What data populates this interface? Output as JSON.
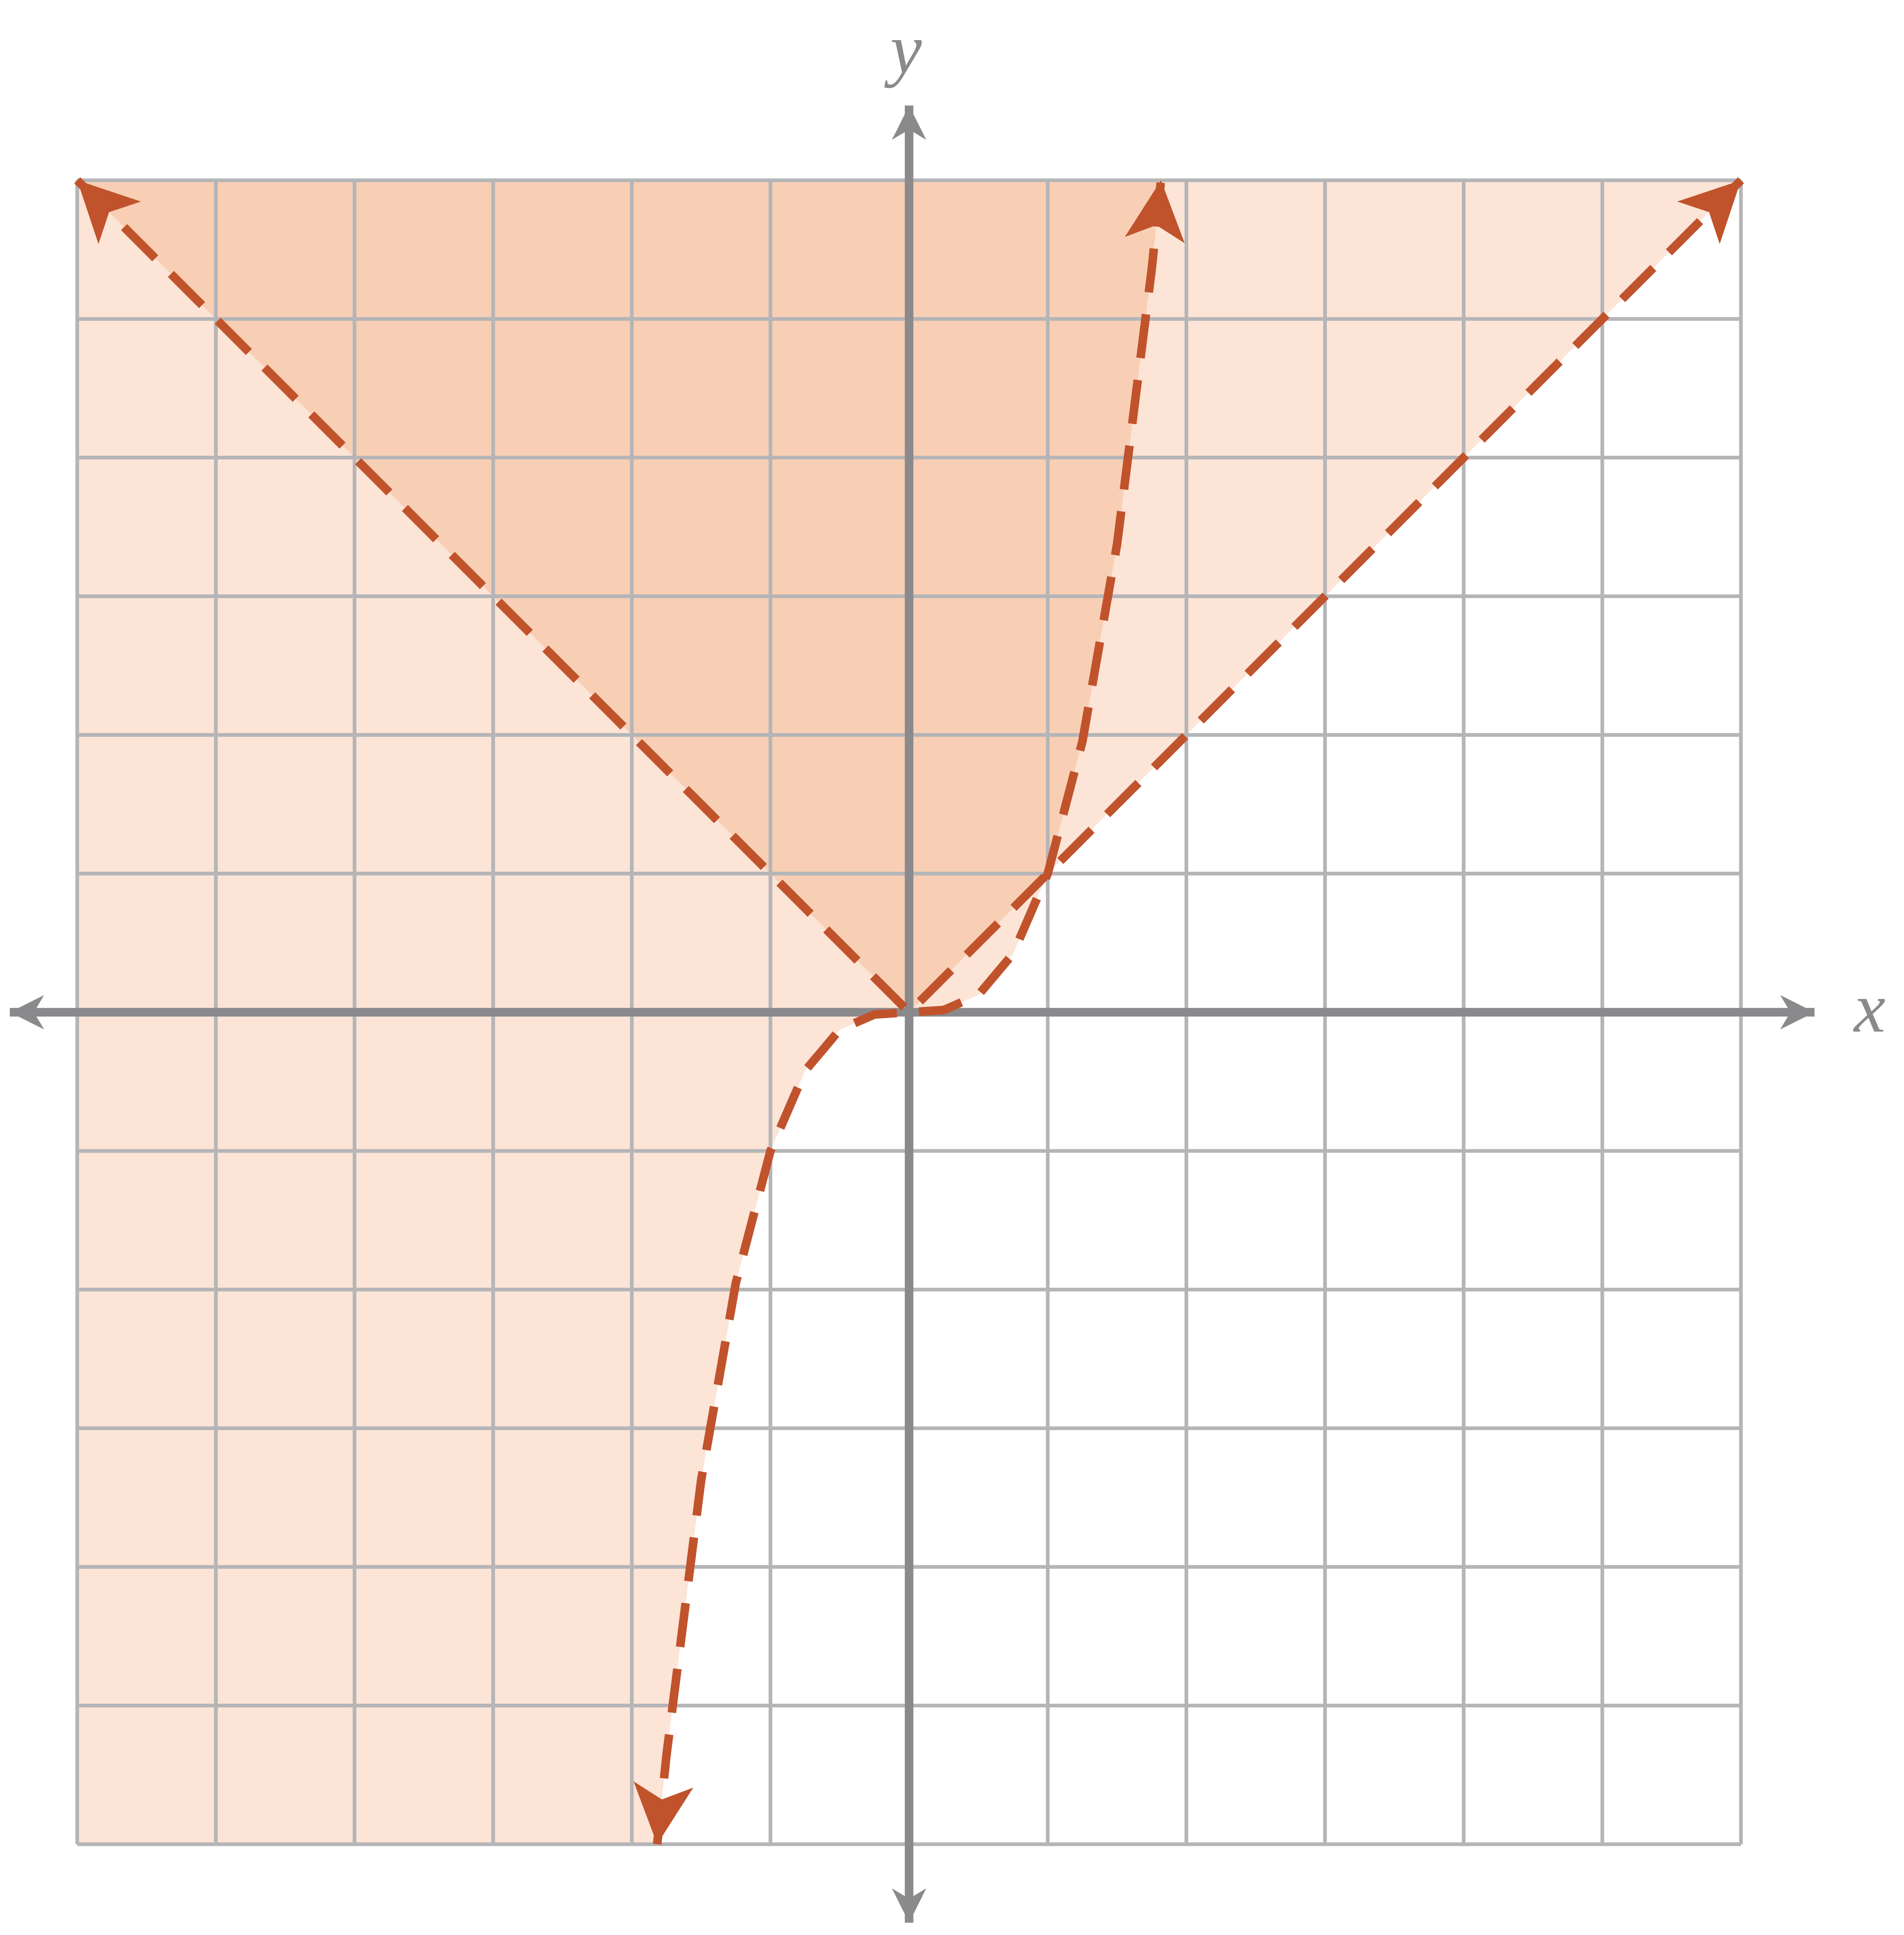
{
  "chart_data": {
    "type": "function-plot",
    "x_label": "x",
    "y_label": "y",
    "xlim": [
      -6,
      6
    ],
    "ylim": [
      -6,
      6
    ],
    "xticks": [
      -6,
      -5,
      -4,
      -3,
      -2,
      -1,
      0,
      1,
      2,
      3,
      4,
      5,
      6
    ],
    "yticks": [
      -6,
      -5,
      -4,
      -3,
      -2,
      -1,
      0,
      1,
      2,
      3,
      4,
      5,
      6
    ],
    "grid": true,
    "series": [
      {
        "color": "#c0532b",
        "x": [
          -6,
          0,
          6
        ],
        "values": [
          6,
          0,
          6
        ]
      },
      {
        "color": "#c0532b",
        "x": [
          -1.817,
          -1.75,
          -1.5,
          -1.25,
          -1,
          -0.75,
          -0.5,
          -0.25,
          0,
          0.25,
          0.5,
          0.75,
          1,
          1.25,
          1.5,
          1.75,
          1.817
        ],
        "values": [
          -6,
          -5.359,
          -3.375,
          -1.953,
          -1,
          -0.422,
          -0.125,
          -0.016,
          0,
          0.016,
          0.125,
          0.422,
          1,
          1.953,
          3.375,
          5.359,
          6
        ]
      }
    ],
    "shading_light": "#fce4d6",
    "shading_dark": "#f8cfb5"
  }
}
